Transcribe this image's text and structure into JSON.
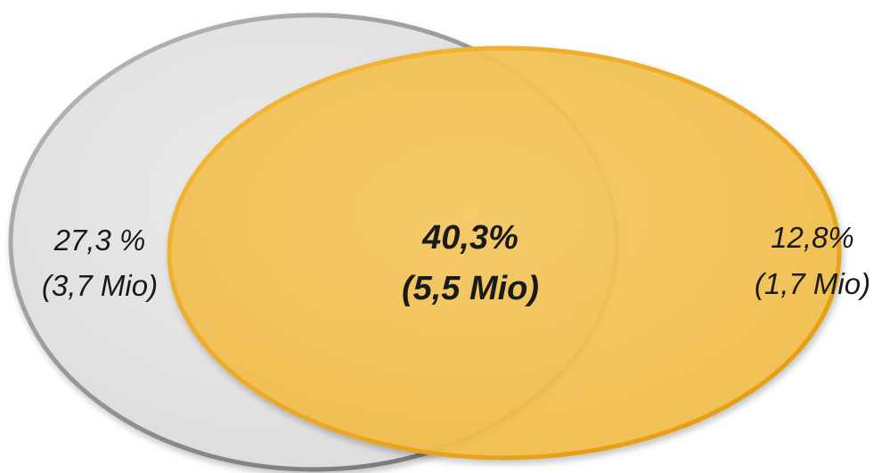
{
  "venn": {
    "left_only": {
      "percent": "27,3 %",
      "count": "(3,7 Mio)"
    },
    "intersection": {
      "percent": "40,3%",
      "count": "(5,5 Mio)"
    },
    "right_only": {
      "percent": "12,8%",
      "count": "(1,7 Mio)"
    }
  },
  "colors": {
    "left_fill": "#e5e5e5",
    "left_stroke": "#8f8f8f",
    "right_fill": "#f3c253",
    "right_stroke": "#eaa21a",
    "text": "#1a1a1a"
  }
}
